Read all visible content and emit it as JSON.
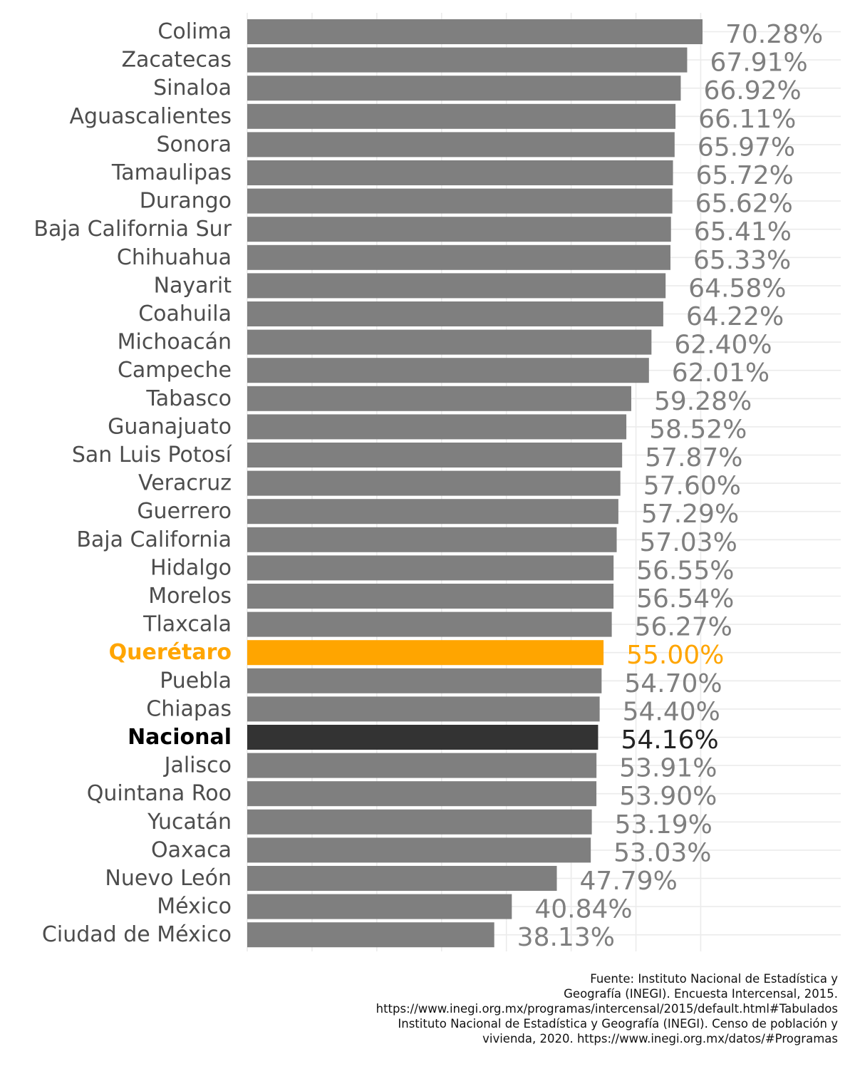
{
  "chart_data": {
    "type": "bar",
    "orientation": "horizontal",
    "categories": [
      "Colima",
      "Zacatecas",
      "Sinaloa",
      "Aguascalientes",
      "Sonora",
      "Tamaulipas",
      "Durango",
      "Baja California Sur",
      "Chihuahua",
      "Nayarit",
      "Coahuila",
      "Michoacán",
      "Campeche",
      "Tabasco",
      "Guanajuato",
      "San Luis Potosí",
      "Veracruz",
      "Guerrero",
      "Baja California",
      "Hidalgo",
      "Morelos",
      "Tlaxcala",
      "Querétaro",
      "Puebla",
      "Chiapas",
      "Nacional",
      "Jalisco",
      "Quintana Roo",
      "Yucatán",
      "Oaxaca",
      "Nuevo León",
      "México",
      "Ciudad de México"
    ],
    "values": [
      70.28,
      67.91,
      66.92,
      66.11,
      65.97,
      65.72,
      65.62,
      65.41,
      65.33,
      64.58,
      64.22,
      62.4,
      62.01,
      59.28,
      58.52,
      57.87,
      57.6,
      57.29,
      57.03,
      56.55,
      56.54,
      56.27,
      55.0,
      54.7,
      54.4,
      54.16,
      53.91,
      53.9,
      53.19,
      53.03,
      47.79,
      40.84,
      38.13
    ],
    "value_labels": [
      "70.28%",
      "67.91%",
      "66.92%",
      "66.11%",
      "65.97%",
      "65.72%",
      "65.62%",
      "65.41%",
      "65.33%",
      "64.58%",
      "64.22%",
      "62.40%",
      "62.01%",
      "59.28%",
      "58.52%",
      "57.87%",
      "57.60%",
      "57.29%",
      "57.03%",
      "56.55%",
      "56.54%",
      "56.27%",
      "55.00%",
      "54.70%",
      "54.40%",
      "54.16%",
      "53.91%",
      "53.90%",
      "53.19%",
      "53.03%",
      "47.79%",
      "40.84%",
      "38.13%"
    ],
    "highlights": {
      "Querétaro": {
        "bar_color": "#ffa500",
        "label_color": "#ffa500",
        "bold": true
      },
      "Nacional": {
        "bar_color": "#333333",
        "label_color": "#000000",
        "value_color": "#222222",
        "bold": true
      }
    },
    "default_bar_color": "#7f7f7f",
    "default_label_color": "#4d4d4d",
    "default_value_color": "#7f7f7f",
    "xlim": [
      0,
      70.28
    ],
    "grid": true,
    "title": "",
    "xlabel": "",
    "ylabel": ""
  },
  "caption": [
    "Fuente: Instituto Nacional de Estadística y",
    "Geografía (INEGI). Encuesta Intercensal, 2015.",
    "https://www.inegi.org.mx/programas/intercensal/2015/default.html#Tabulados",
    "Instituto Nacional de Estadística y Geografía (INEGI). Censo de población y",
    "vivienda, 2020. https://www.inegi.org.mx/datos/#Programas"
  ]
}
